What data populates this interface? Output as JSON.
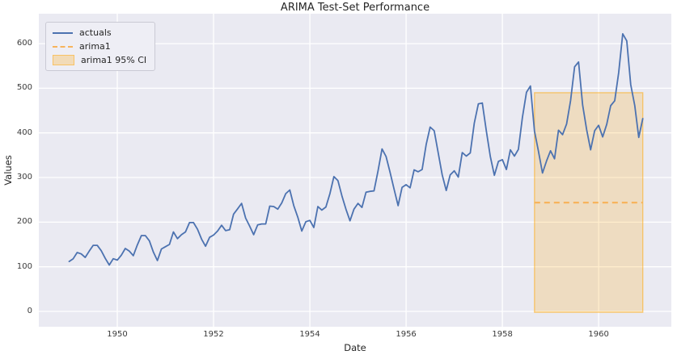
{
  "chart_data": {
    "type": "line",
    "title": "ARIMA Test-Set Performance",
    "xlabel": "Date",
    "ylabel": "Values",
    "xlim": [
      1948.37,
      1961.51
    ],
    "ylim": [
      -34.3,
      667
    ],
    "x_ticks": [
      1950,
      1952,
      1954,
      1956,
      1958,
      1960
    ],
    "y_ticks": [
      0,
      100,
      200,
      300,
      400,
      500,
      600
    ],
    "grid": true,
    "grid_color": "#ffffff",
    "plot_bg_color": "#eaeaf2",
    "legend_position": "upper left",
    "series": [
      {
        "name": "actuals",
        "type": "line",
        "color": "#4c72b0",
        "start_year": 1949,
        "points_per_year": 12,
        "values": [
          112,
          118,
          132,
          129,
          121,
          135,
          148,
          148,
          136,
          119,
          104,
          118,
          115,
          126,
          141,
          135,
          125,
          149,
          170,
          170,
          158,
          133,
          114,
          140,
          145,
          150,
          178,
          163,
          172,
          178,
          199,
          199,
          184,
          162,
          146,
          166,
          171,
          180,
          193,
          181,
          183,
          218,
          230,
          242,
          209,
          191,
          172,
          194,
          196,
          196,
          236,
          235,
          229,
          243,
          264,
          272,
          237,
          211,
          180,
          201,
          204,
          188,
          235,
          227,
          234,
          264,
          302,
          293,
          259,
          229,
          203,
          229,
          242,
          233,
          267,
          269,
          270,
          315,
          364,
          347,
          312,
          274,
          237,
          278,
          284,
          277,
          317,
          313,
          318,
          374,
          413,
          405,
          355,
          306,
          271,
          306,
          315,
          301,
          356,
          348,
          355,
          422,
          465,
          467,
          404,
          347,
          305,
          336,
          340,
          318,
          362,
          348,
          363,
          435,
          491,
          505,
          404,
          359,
          310,
          337,
          360,
          342,
          406,
          396,
          420,
          472,
          548,
          559,
          463,
          407,
          362,
          405,
          417,
          391,
          419,
          461,
          472,
          535,
          622,
          606,
          508,
          461,
          390,
          432
        ]
      },
      {
        "name": "arima1",
        "type": "dashed-line",
        "color": "#f7b45c",
        "x_start": 1958.667,
        "x_end": 1960.917,
        "value": 243.9
      },
      {
        "name": "arima1 95% CI",
        "type": "band",
        "fill": "#ffa500",
        "fill_alpha": 0.2,
        "edge_alpha": 0.5,
        "x_start": 1958.667,
        "x_end": 1960.917,
        "lower": -2,
        "upper": 490
      }
    ]
  }
}
